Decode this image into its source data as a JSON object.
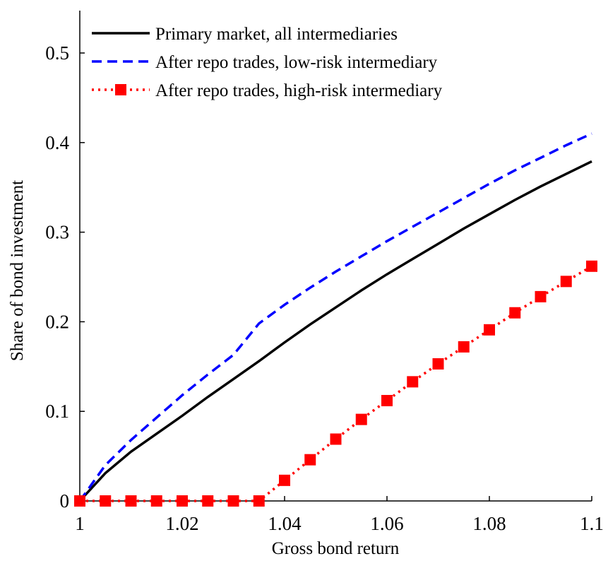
{
  "chart_data": {
    "type": "line",
    "title": "",
    "xlabel": "Gross bond return",
    "ylabel": "Share of bond investment",
    "xlim": [
      1,
      1.1
    ],
    "ylim": [
      0,
      0.55
    ],
    "x_ticks": [
      "1",
      "1.02",
      "1.04",
      "1.06",
      "1.08",
      "1.1"
    ],
    "y_ticks": [
      "0",
      "0.1",
      "0.2",
      "0.3",
      "0.4",
      "0.5"
    ],
    "grid": false,
    "legend_position": "top-left",
    "series": [
      {
        "name": "Primary market, all intermediaries",
        "color": "#000000",
        "style": "solid",
        "marker": "none",
        "points": [
          [
            1.0,
            0.0
          ],
          [
            1.005,
            0.031
          ],
          [
            1.01,
            0.055
          ],
          [
            1.015,
            0.075
          ],
          [
            1.02,
            0.095
          ],
          [
            1.025,
            0.116
          ],
          [
            1.03,
            0.136
          ],
          [
            1.035,
            0.156
          ],
          [
            1.04,
            0.177
          ],
          [
            1.045,
            0.197
          ],
          [
            1.05,
            0.216
          ],
          [
            1.055,
            0.235
          ],
          [
            1.06,
            0.253
          ],
          [
            1.065,
            0.27
          ],
          [
            1.07,
            0.287
          ],
          [
            1.075,
            0.304
          ],
          [
            1.08,
            0.32
          ],
          [
            1.085,
            0.336
          ],
          [
            1.09,
            0.351
          ],
          [
            1.095,
            0.365
          ],
          [
            1.1,
            0.379
          ]
        ]
      },
      {
        "name": "After repo trades, low-risk intermediary",
        "color": "#0000ff",
        "style": "dashed",
        "marker": "none",
        "points": [
          [
            1.0,
            0.0
          ],
          [
            1.005,
            0.04
          ],
          [
            1.01,
            0.068
          ],
          [
            1.015,
            0.093
          ],
          [
            1.02,
            0.118
          ],
          [
            1.025,
            0.141
          ],
          [
            1.03,
            0.163
          ],
          [
            1.035,
            0.198
          ],
          [
            1.04,
            0.219
          ],
          [
            1.045,
            0.238
          ],
          [
            1.05,
            0.256
          ],
          [
            1.055,
            0.273
          ],
          [
            1.06,
            0.29
          ],
          [
            1.065,
            0.306
          ],
          [
            1.07,
            0.322
          ],
          [
            1.075,
            0.338
          ],
          [
            1.08,
            0.354
          ],
          [
            1.085,
            0.369
          ],
          [
            1.09,
            0.383
          ],
          [
            1.095,
            0.397
          ],
          [
            1.1,
            0.41
          ]
        ]
      },
      {
        "name": "After repo trades, high-risk intermediary",
        "color": "#ff0000",
        "style": "dotted",
        "marker": "square",
        "points": [
          [
            1.0,
            0.0
          ],
          [
            1.005,
            0.0
          ],
          [
            1.01,
            0.0
          ],
          [
            1.015,
            0.0
          ],
          [
            1.02,
            0.0
          ],
          [
            1.025,
            0.0
          ],
          [
            1.03,
            0.0
          ],
          [
            1.035,
            0.0
          ],
          [
            1.04,
            0.023
          ],
          [
            1.045,
            0.046
          ],
          [
            1.05,
            0.069
          ],
          [
            1.055,
            0.091
          ],
          [
            1.06,
            0.112
          ],
          [
            1.065,
            0.133
          ],
          [
            1.07,
            0.153
          ],
          [
            1.075,
            0.172
          ],
          [
            1.08,
            0.191
          ],
          [
            1.085,
            0.21
          ],
          [
            1.09,
            0.228
          ],
          [
            1.095,
            0.245
          ],
          [
            1.1,
            0.262
          ]
        ]
      }
    ]
  }
}
